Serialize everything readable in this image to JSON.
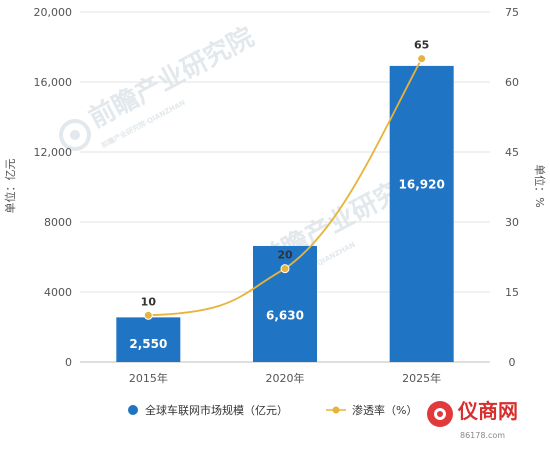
{
  "chart_data": {
    "type": "bar+line",
    "categories": [
      "2015年",
      "2020年",
      "2025年"
    ],
    "series": [
      {
        "name": "全球车联网市场规模（亿元）",
        "type": "bar",
        "axis": "left",
        "values": [
          2550,
          6630,
          16920
        ],
        "labels": [
          "2,550",
          "6,630",
          "16,920"
        ],
        "color": "#1f74c4"
      },
      {
        "name": "渗透率（%）",
        "type": "line",
        "axis": "right",
        "values": [
          10,
          20,
          65
        ],
        "labels": [
          "10",
          "20",
          "65"
        ],
        "color": "#e8b339"
      }
    ],
    "ylabel_left": "单位：亿元",
    "ylabel_right": "单位：%",
    "ylim_left": [
      0,
      20000
    ],
    "ylim_right": [
      0,
      75
    ],
    "yticks_left": [
      "0",
      "4000",
      "8000",
      "12,000",
      "16,000",
      "20,000"
    ],
    "yticks_right": [
      "0",
      "15",
      "30",
      "45",
      "60",
      "75"
    ],
    "grid": true,
    "legend_position": "bottom"
  },
  "watermark": {
    "text": "前瞻产业研究院",
    "subtext": "前瞻产业研究院·QIANZHAN"
  },
  "logo": {
    "text": "仪商网",
    "subtext": "86178.com"
  },
  "colors": {
    "bar": "#1f74c4",
    "line": "#e8b339",
    "grid": "#e3e3e3",
    "text": "#555555"
  }
}
